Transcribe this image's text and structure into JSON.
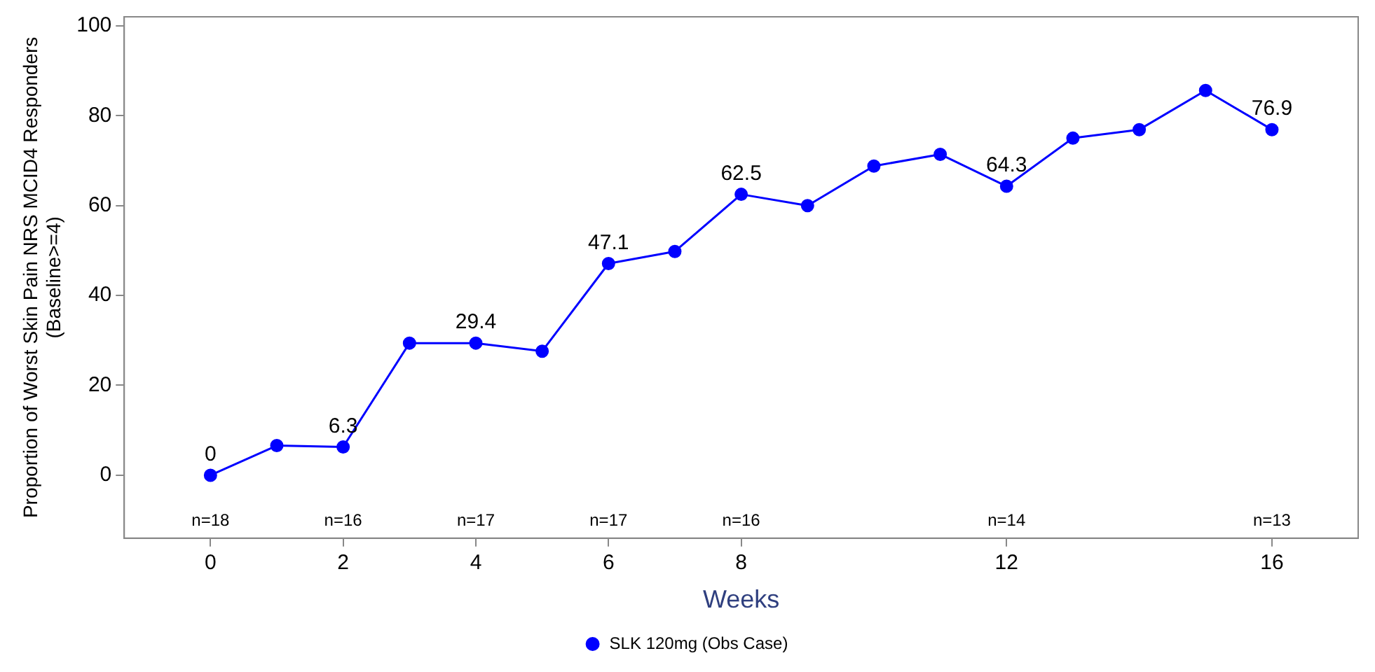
{
  "chart_data": {
    "type": "line",
    "xlabel": "Weeks",
    "ylabel": "Proportion of Worst Skin Pain NRS MCID4 Responders\n(Baseline>=4)",
    "x": [
      0,
      1,
      2,
      3,
      4,
      5,
      6,
      7,
      8,
      9,
      10,
      11,
      12,
      13,
      14,
      15,
      16
    ],
    "series": [
      {
        "name": "SLK 120mg (Obs Case)",
        "color": "#0000ff",
        "values": [
          0,
          6.6,
          6.3,
          29.4,
          29.4,
          27.6,
          47.1,
          49.8,
          62.5,
          60,
          68.8,
          71.4,
          64.3,
          75,
          76.9,
          85.6,
          76.9
        ],
        "value_labels": [
          "0",
          null,
          "6.3",
          null,
          "29.4",
          null,
          "47.1",
          null,
          "62.5",
          null,
          null,
          null,
          "64.3",
          null,
          null,
          null,
          "76.9"
        ]
      }
    ],
    "xlim": [
      -1.3,
      17.3
    ],
    "xticks": [
      0,
      2,
      4,
      6,
      8,
      12,
      16
    ],
    "ylim": [
      -14,
      102
    ],
    "yticks": [
      0,
      20,
      40,
      60,
      80,
      100
    ],
    "annotations": [
      "n=18",
      "n=16",
      "n=17",
      "n=17",
      "n=16",
      "n=14",
      "n=13"
    ],
    "grid": false,
    "legend": "bottom",
    "marker": "circle",
    "line_style": "solid"
  }
}
